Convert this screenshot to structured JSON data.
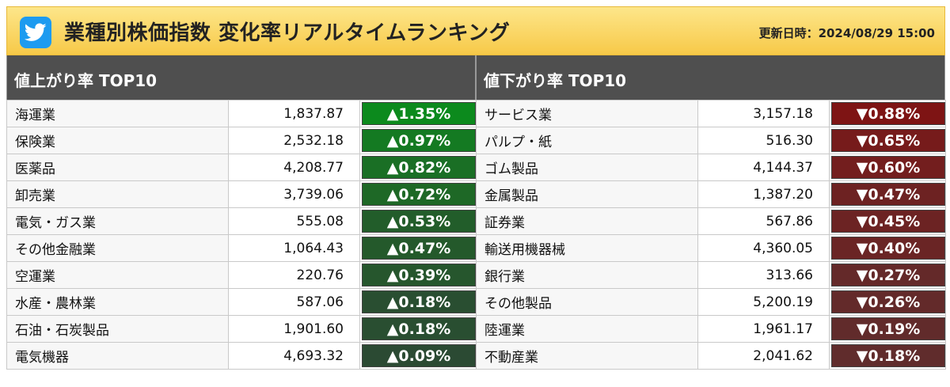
{
  "header": {
    "title": "業種別株価指数 変化率リアルタイムランキング",
    "updated_label": "更新日時：2024/08/29 15:00"
  },
  "gainers": {
    "title": "値上がり率 TOP10",
    "rows": [
      {
        "name": "海運業",
        "price": "1,837.87",
        "change": "▲1.35%",
        "color": "#0c8a1d"
      },
      {
        "name": "保険業",
        "price": "2,532.18",
        "change": "▲0.97%",
        "color": "#147a22"
      },
      {
        "name": "医薬品",
        "price": "4,208.77",
        "change": "▲0.82%",
        "color": "#1a6f25"
      },
      {
        "name": "卸売業",
        "price": "3,739.06",
        "change": "▲0.72%",
        "color": "#1e6826"
      },
      {
        "name": "電気・ガス業",
        "price": "555.08",
        "change": "▲0.53%",
        "color": "#225d2a"
      },
      {
        "name": "その他金融業",
        "price": "1,064.43",
        "change": "▲0.47%",
        "color": "#24592b"
      },
      {
        "name": "空運業",
        "price": "220.76",
        "change": "▲0.39%",
        "color": "#26562d"
      },
      {
        "name": "水産・農林業",
        "price": "587.06",
        "change": "▲0.18%",
        "color": "#294e31"
      },
      {
        "name": "石油・石炭製品",
        "price": "1,901.60",
        "change": "▲0.18%",
        "color": "#294e31"
      },
      {
        "name": "電気機器",
        "price": "4,693.32",
        "change": "▲0.09%",
        "color": "#2b4a33"
      }
    ]
  },
  "losers": {
    "title": "値下がり率 TOP10",
    "rows": [
      {
        "name": "サービス業",
        "price": "3,157.18",
        "change": "▼0.88%",
        "color": "#7e1414"
      },
      {
        "name": "パルプ・紙",
        "price": "516.30",
        "change": "▼0.65%",
        "color": "#761b1b"
      },
      {
        "name": "ゴム製品",
        "price": "4,144.37",
        "change": "▼0.60%",
        "color": "#731e1e"
      },
      {
        "name": "金属製品",
        "price": "1,387.20",
        "change": "▼0.47%",
        "color": "#6d2222"
      },
      {
        "name": "証券業",
        "price": "567.86",
        "change": "▼0.45%",
        "color": "#6c2323"
      },
      {
        "name": "輸送用機器械",
        "price": "4,360.05",
        "change": "▼0.40%",
        "color": "#6a2525"
      },
      {
        "name": "銀行業",
        "price": "313.66",
        "change": "▼0.27%",
        "color": "#642929"
      },
      {
        "name": "その他製品",
        "price": "5,200.19",
        "change": "▼0.26%",
        "color": "#632a2a"
      },
      {
        "name": "陸運業",
        "price": "1,961.17",
        "change": "▼0.19%",
        "color": "#612b2b"
      },
      {
        "name": "不動産業",
        "price": "2,041.62",
        "change": "▼0.18%",
        "color": "#602c2c"
      }
    ]
  },
  "icons": {
    "twitter": "twitter-bird-icon"
  }
}
